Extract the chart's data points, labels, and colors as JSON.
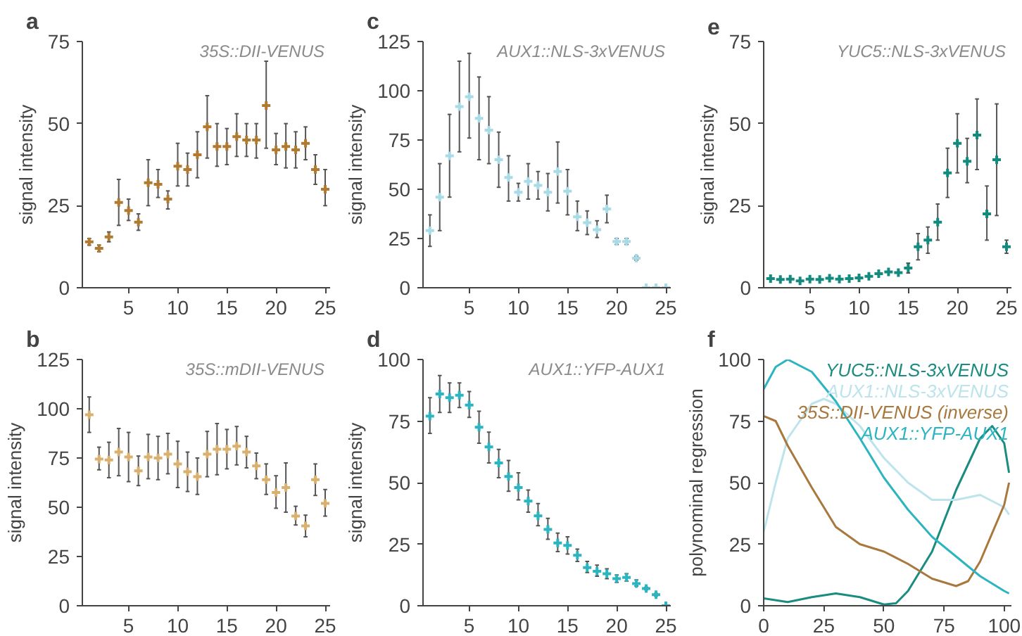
{
  "chart_data": [
    {
      "type": "scatter",
      "title": "a",
      "subtitle": "35S::DII-VENUS",
      "ylabel": "signal intensity",
      "color": "#b07a30",
      "marker": "cross",
      "grid": false,
      "xlim": [
        0.3,
        25.5
      ],
      "ylim": [
        0,
        75
      ],
      "xticks": [
        5,
        10,
        15,
        20,
        25
      ],
      "yticks": [
        0,
        25,
        50,
        75
      ],
      "x": [
        1,
        2,
        3,
        4,
        5,
        6,
        7,
        8,
        9,
        10,
        11,
        12,
        13,
        14,
        15,
        16,
        17,
        18,
        19,
        20,
        21,
        22,
        23,
        24,
        25
      ],
      "values": [
        14,
        12,
        15.5,
        26,
        23.5,
        20,
        32,
        31.5,
        27,
        37,
        36,
        40.5,
        49,
        43,
        43,
        46,
        45,
        45,
        55.5,
        42,
        43,
        42,
        44,
        36,
        30
      ],
      "errors": [
        [
          13,
          15
        ],
        [
          11,
          13
        ],
        [
          14,
          17
        ],
        [
          19,
          33
        ],
        [
          20.5,
          27
        ],
        [
          17.5,
          22.5
        ],
        [
          25,
          39
        ],
        [
          27.5,
          36
        ],
        [
          24,
          29.5
        ],
        [
          31,
          44
        ],
        [
          31,
          41
        ],
        [
          33.5,
          47.5
        ],
        [
          39.5,
          58.5
        ],
        [
          37,
          50
        ],
        [
          37.5,
          48.5
        ],
        [
          40,
          53
        ],
        [
          40,
          50
        ],
        [
          39.5,
          50
        ],
        [
          42.5,
          69
        ],
        [
          37.5,
          47
        ],
        [
          36.5,
          50
        ],
        [
          36.5,
          47.5
        ],
        [
          39,
          49
        ],
        [
          31.5,
          40.5
        ],
        [
          25,
          36
        ]
      ]
    },
    {
      "type": "scatter",
      "title": "c",
      "subtitle": "AUX1::NLS-3xVENUS",
      "ylabel": "signal intensity",
      "color": "#a9dbe6",
      "marker": "cross",
      "grid": false,
      "xlim": [
        0.3,
        25.5
      ],
      "ylim": [
        0,
        125
      ],
      "xticks": [
        5,
        10,
        15,
        20,
        25
      ],
      "yticks": [
        0,
        25,
        50,
        75,
        100,
        125
      ],
      "x": [
        1,
        2,
        3,
        4,
        5,
        6,
        7,
        8,
        9,
        10,
        11,
        12,
        13,
        14,
        15,
        16,
        17,
        18,
        19,
        20,
        21,
        22,
        23,
        24,
        25
      ],
      "values": [
        29,
        46,
        67,
        92,
        97,
        86,
        80,
        65,
        56,
        48.5,
        54,
        52,
        48.5,
        59,
        49,
        36,
        33,
        29.5,
        40,
        23.5,
        23.5,
        15,
        0,
        0,
        0
      ],
      "errors": [
        [
          21,
          37
        ],
        [
          29,
          63
        ],
        [
          46,
          88
        ],
        [
          69,
          115
        ],
        [
          76,
          119
        ],
        [
          65,
          107
        ],
        [
          63,
          97
        ],
        [
          51,
          79
        ],
        [
          44,
          67
        ],
        [
          44,
          53
        ],
        [
          45,
          63
        ],
        [
          45,
          59
        ],
        [
          39,
          58
        ],
        [
          43,
          74
        ],
        [
          37,
          60
        ],
        [
          29,
          44
        ],
        [
          27,
          39
        ],
        [
          25.5,
          34
        ],
        [
          33,
          47
        ],
        [
          22,
          25
        ],
        [
          22,
          25
        ],
        [
          14,
          16
        ],
        null,
        null,
        null
      ]
    },
    {
      "type": "scatter",
      "title": "e",
      "subtitle": "YUC5::NLS-3xVENUS",
      "ylabel": "signal intensity",
      "color": "#138a7e",
      "marker": "cross",
      "grid": false,
      "xlim": [
        0.3,
        25.5
      ],
      "ylim": [
        0,
        75
      ],
      "xticks": [
        5,
        10,
        15,
        20,
        25
      ],
      "yticks": [
        0,
        25,
        50,
        75
      ],
      "x": [
        1,
        2,
        3,
        4,
        5,
        6,
        7,
        8,
        9,
        10,
        11,
        12,
        13,
        14,
        15,
        16,
        17,
        18,
        19,
        20,
        21,
        22,
        23,
        24,
        25
      ],
      "values": [
        2.8,
        2.5,
        2.6,
        2.1,
        2.6,
        2.5,
        2.9,
        2.6,
        2.8,
        3,
        3.5,
        4.3,
        4.8,
        4.6,
        6,
        12.5,
        14.5,
        20,
        35,
        44,
        38.5,
        46.5,
        22.5,
        39,
        12.5
      ],
      "errors": [
        null,
        null,
        null,
        null,
        null,
        null,
        null,
        null,
        null,
        null,
        null,
        null,
        null,
        null,
        [
          4.5,
          7.5
        ],
        [
          8.5,
          16.5
        ],
        [
          10.5,
          18.5
        ],
        [
          14.5,
          25.5
        ],
        [
          27.5,
          42.5
        ],
        [
          35,
          53
        ],
        [
          32,
          45.5
        ],
        [
          36,
          57.5
        ],
        [
          14.5,
          31
        ],
        [
          22,
          56
        ],
        [
          10.5,
          14.5
        ]
      ]
    },
    {
      "type": "scatter",
      "title": "b",
      "subtitle": "35S::mDII-VENUS",
      "ylabel": "signal intensity",
      "color": "#d8b070",
      "marker": "cross",
      "grid": false,
      "xlim": [
        0.3,
        25.5
      ],
      "ylim": [
        0,
        125
      ],
      "xticks": [
        5,
        10,
        15,
        20,
        25
      ],
      "yticks": [
        0,
        25,
        50,
        75,
        100,
        125
      ],
      "x": [
        1,
        2,
        3,
        4,
        5,
        6,
        7,
        8,
        9,
        10,
        11,
        12,
        13,
        14,
        15,
        16,
        17,
        18,
        19,
        20,
        21,
        22,
        23,
        24,
        25
      ],
      "values": [
        97,
        74.5,
        74,
        78,
        75.5,
        68.5,
        75.5,
        75,
        77,
        72,
        68,
        65.5,
        77,
        79.5,
        79.5,
        81,
        78,
        71,
        64,
        57.5,
        60,
        45.5,
        40.5,
        64,
        52
      ],
      "errors": [
        [
          88,
          106
        ],
        [
          69,
          80.5
        ],
        [
          65,
          83
        ],
        [
          66,
          90
        ],
        [
          63,
          88
        ],
        [
          61,
          76
        ],
        [
          64.5,
          87
        ],
        [
          64,
          86
        ],
        [
          67,
          87.5
        ],
        [
          60,
          83.5
        ],
        [
          58,
          78
        ],
        [
          56.5,
          75
        ],
        [
          65.5,
          88.5
        ],
        [
          66.5,
          92.5
        ],
        [
          69.5,
          89.5
        ],
        [
          71.5,
          91
        ],
        [
          70,
          86
        ],
        [
          64.5,
          77.5
        ],
        [
          56.5,
          72
        ],
        [
          49.5,
          66
        ],
        [
          47.5,
          72.5
        ],
        [
          41,
          50.5
        ],
        [
          35,
          46
        ],
        [
          56,
          72
        ],
        [
          45.5,
          59
        ]
      ]
    },
    {
      "type": "scatter",
      "title": "d",
      "subtitle": "AUX1::YFP-AUX1",
      "ylabel": "signal intensity",
      "color": "#2cb5c0",
      "marker": "cross",
      "grid": false,
      "xlim": [
        0.3,
        25.5
      ],
      "ylim": [
        0,
        100
      ],
      "xticks": [
        5,
        10,
        15,
        20,
        25
      ],
      "yticks": [
        0,
        25,
        50,
        75,
        100
      ],
      "x": [
        1,
        2,
        3,
        4,
        5,
        6,
        7,
        8,
        9,
        10,
        11,
        12,
        13,
        14,
        15,
        16,
        17,
        18,
        19,
        20,
        21,
        22,
        23,
        24,
        25
      ],
      "values": [
        77,
        86,
        84.5,
        85.5,
        81.5,
        72.5,
        64.5,
        58,
        52.5,
        48,
        42.5,
        36.5,
        31,
        25.5,
        24.5,
        20.5,
        15.5,
        14,
        13,
        11,
        11.5,
        9,
        7,
        4.5,
        0
      ],
      "errors": [
        [
          70,
          84.5
        ],
        [
          78.5,
          93.5
        ],
        [
          78.5,
          90.5
        ],
        [
          80.5,
          90.5
        ],
        [
          76.5,
          87
        ],
        [
          66,
          79
        ],
        [
          58,
          70.5
        ],
        [
          52,
          63.5
        ],
        [
          46.5,
          59
        ],
        [
          43,
          54
        ],
        [
          38,
          47
        ],
        [
          32.5,
          41.5
        ],
        [
          27,
          35.5
        ],
        [
          22,
          29.5
        ],
        [
          21,
          28
        ],
        [
          18,
          23
        ],
        [
          13.5,
          18
        ],
        [
          12,
          16.5
        ],
        [
          11,
          15
        ],
        [
          9.5,
          12.5
        ],
        [
          10,
          13
        ],
        [
          8,
          10.5
        ],
        [
          6.5,
          7.5
        ],
        [
          4,
          5
        ],
        null
      ]
    },
    {
      "type": "line",
      "title": "f",
      "ylabel": "polynominal regression",
      "grid": false,
      "legend": "top right",
      "marker": "none",
      "line_style": "solid",
      "xlim": [
        0,
        103
      ],
      "ylim": [
        0,
        100
      ],
      "xticks": [
        0,
        25,
        50,
        75,
        100
      ],
      "yticks": [
        0,
        25,
        50,
        75,
        100
      ],
      "series": [
        {
          "name": "YUC5::NLS-3xVENUS",
          "color": "#1a8c80",
          "x": [
            0,
            10,
            20,
            30,
            40,
            50,
            55,
            60,
            70,
            80,
            90,
            95,
            100,
            102
          ],
          "values": [
            3,
            1.5,
            3.5,
            5,
            3.5,
            0.5,
            1,
            6,
            22,
            47,
            68,
            73,
            66,
            54
          ]
        },
        {
          "name": "AUX1::NLS-3xVENUS",
          "color": "#bde4ec",
          "x": [
            0,
            5,
            10,
            20,
            25,
            30,
            40,
            50,
            60,
            70,
            80,
            90,
            100,
            102
          ],
          "values": [
            30,
            50,
            68,
            82,
            84,
            82,
            73,
            60,
            50,
            43,
            43,
            45,
            40,
            37
          ]
        },
        {
          "name": "35S::DII-VENUS (inverse)",
          "color": "#a8783d",
          "x": [
            0,
            5,
            10,
            20,
            30,
            40,
            50,
            60,
            70,
            80,
            85,
            90,
            100,
            102
          ],
          "values": [
            77,
            75,
            65,
            48,
            32,
            25,
            22,
            17,
            11,
            8,
            10,
            18,
            41,
            50
          ]
        },
        {
          "name": "AUX1::YFP-AUX1",
          "color": "#2cb5c0",
          "x": [
            0,
            5,
            10,
            20,
            30,
            40,
            50,
            60,
            70,
            80,
            90,
            100,
            102
          ],
          "values": [
            88,
            97,
            100,
            95,
            83,
            68,
            52,
            39,
            28,
            20,
            12,
            6,
            5
          ]
        }
      ]
    }
  ]
}
